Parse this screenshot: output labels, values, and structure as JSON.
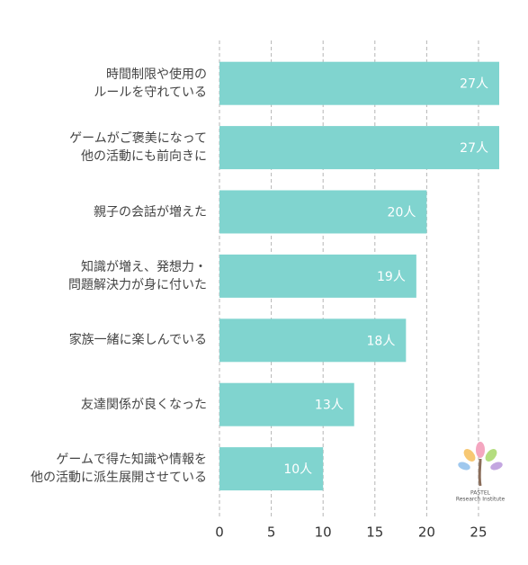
{
  "chart_data": {
    "type": "bar",
    "orientation": "horizontal",
    "categories": [
      "時間制限や使用の\nルールを守れている",
      "ゲームがご褒美になって\n他の活動にも前向きに",
      "親子の会話が増えた",
      "知識が増え、発想力・\n問題解決力が身に付いた",
      "家族一緒に楽しんでいる",
      "友達関係が良くなった",
      "ゲームで得た知識や情報を\n他の活動に派生展開させている"
    ],
    "values": [
      27,
      27,
      20,
      19,
      18,
      13,
      10
    ],
    "value_labels": [
      "27人",
      "27人",
      "20人",
      "19人",
      "18人",
      "13人",
      "10人"
    ],
    "color": "#80d4cf",
    "xlim": [
      0,
      27
    ],
    "xticks": [
      0,
      5,
      10,
      15,
      20,
      25
    ],
    "grid": true,
    "logo": [
      "PASTEL",
      "Research Institute"
    ]
  }
}
